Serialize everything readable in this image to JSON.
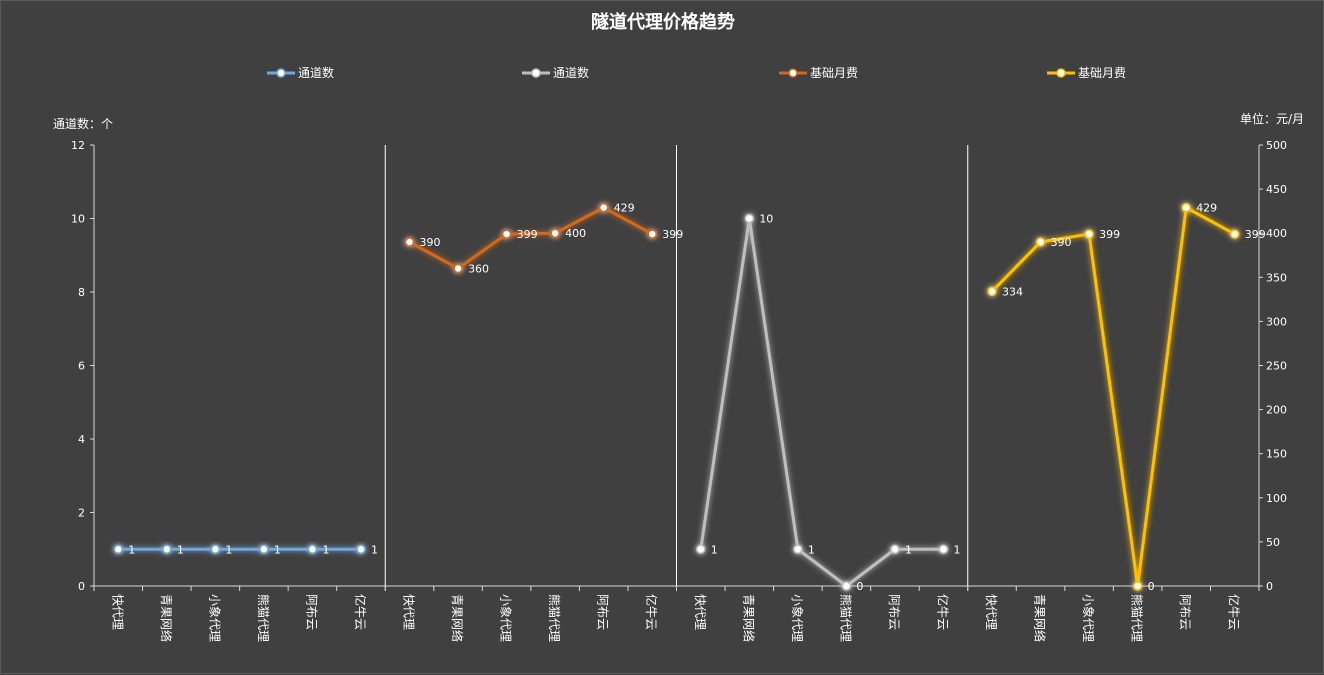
{
  "chart_data": {
    "type": "line",
    "title": "隧道代理价格趋势",
    "ylabel_left": "通道数：个",
    "ylabel_right": "单位：元/月",
    "ylim_left": [
      0,
      12
    ],
    "yticks_left": [
      "0",
      "2",
      "4",
      "6",
      "8",
      "10",
      "12"
    ],
    "ylim_right": [
      0,
      500
    ],
    "yticks_right": [
      "0",
      "50",
      "100",
      "150",
      "200",
      "250",
      "300",
      "350",
      "400",
      "450",
      "500"
    ],
    "grid": false,
    "legend_position": "top",
    "categories": [
      "快代理",
      "青果网络",
      "小象代理",
      "熊猫代理",
      "阿布云",
      "亿牛云"
    ],
    "series": [
      {
        "name": "通道数",
        "axis": "left",
        "panel": 0,
        "color": "#6fa8dc",
        "values": [
          1,
          1,
          1,
          1,
          1,
          1
        ]
      },
      {
        "name": "通道数",
        "axis": "left",
        "panel": 2,
        "color": "#bfbfbf",
        "values": [
          1,
          10,
          1,
          0,
          1,
          1
        ]
      },
      {
        "name": "基础月费",
        "axis": "right",
        "panel": 1,
        "color": "#d2691e",
        "values": [
          390,
          360,
          399,
          400,
          429,
          399
        ]
      },
      {
        "name": "基础月费",
        "axis": "right",
        "panel": 3,
        "color": "#ffc000",
        "values": [
          334,
          390,
          399,
          0,
          429,
          399
        ]
      }
    ]
  }
}
